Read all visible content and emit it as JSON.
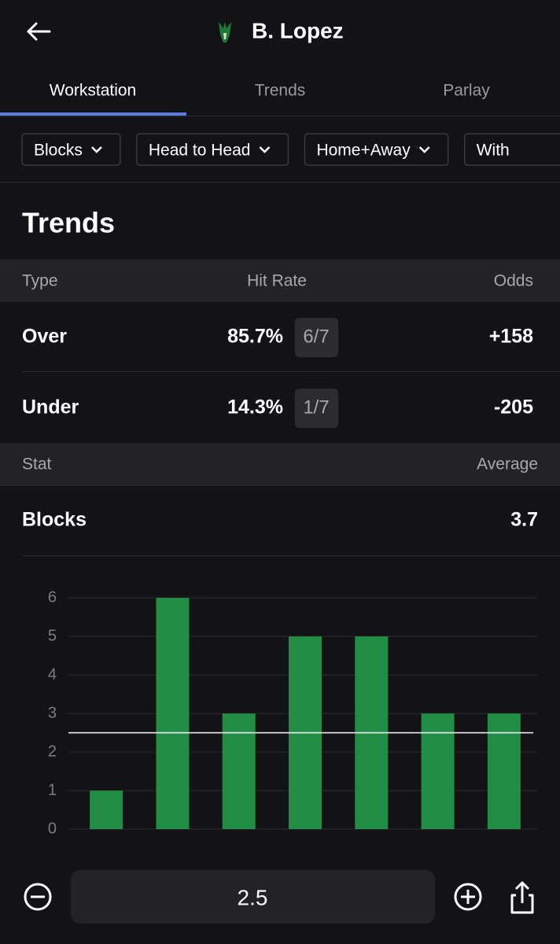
{
  "header": {
    "title": "B. Lopez"
  },
  "tabs": [
    "Workstation",
    "Trends",
    "Parlay"
  ],
  "filters": [
    "Blocks",
    "Head to Head",
    "Home+Away",
    "With"
  ],
  "section_title": "Trends",
  "odds_table": {
    "headers": [
      "Type",
      "Hit Rate",
      "Odds"
    ],
    "rows": [
      [
        "Over",
        "85.7%",
        "6/7",
        "+158"
      ],
      [
        "Under",
        "14.3%",
        "1/7",
        "-205"
      ]
    ]
  },
  "stat_table": {
    "headers": [
      "Stat",
      "Average"
    ],
    "rows": [
      [
        "Blocks",
        "3.7"
      ]
    ]
  },
  "chart_data": {
    "type": "bar",
    "categories": [
      null,
      null,
      null,
      null,
      null,
      null,
      null
    ],
    "values": [
      1,
      6,
      3,
      5,
      5,
      3,
      3
    ],
    "color": "#218c44",
    "ylim": [
      0,
      6
    ],
    "yticks": [
      0,
      1,
      2,
      3,
      4,
      5,
      6
    ],
    "grid": true,
    "threshold": 2.5
  }
}
